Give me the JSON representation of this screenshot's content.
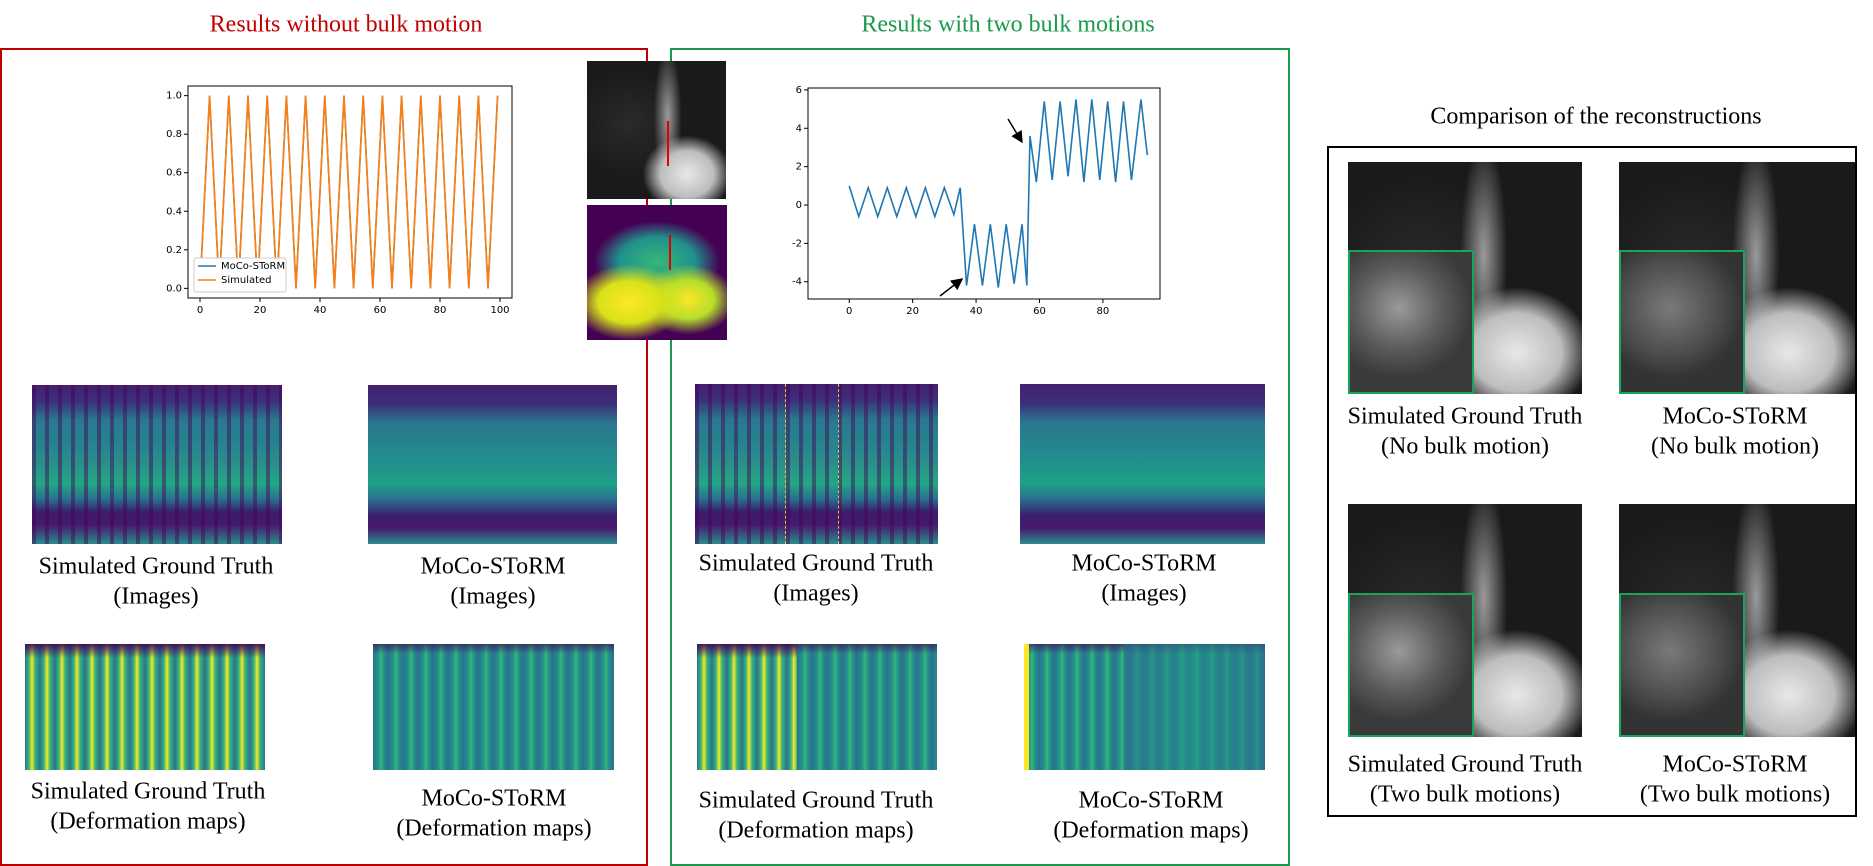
{
  "chart_data": [
    {
      "type": "line",
      "legend": "lower left",
      "xlim": [
        -4,
        104
      ],
      "ylim": [
        -0.05,
        1.05
      ],
      "xticks": [
        0,
        20,
        40,
        60,
        80,
        100
      ],
      "yticks": [
        {
          "value": 0,
          "label": "0.0"
        },
        {
          "value": 0.2,
          "label": "0.2"
        },
        {
          "value": 0.4,
          "label": "0.4"
        },
        {
          "value": 0.6,
          "label": "0.6"
        },
        {
          "value": 0.8,
          "label": "0.8"
        },
        {
          "value": 1,
          "label": "1.0"
        }
      ],
      "x": [
        0,
        3.2,
        6.4,
        9.6,
        12.8,
        16,
        19.2,
        22.4,
        25.6,
        28.8,
        32,
        35.2,
        38.4,
        41.6,
        44.8,
        48,
        51.2,
        54.4,
        57.6,
        60.8,
        64,
        67.2,
        70.4,
        73.6,
        76.8,
        80,
        83.2,
        86.4,
        89.6,
        92.8,
        96,
        99.2
      ],
      "series": [
        {
          "name": "MoCo-SToRM",
          "color": "#1f77b4",
          "values": [
            0,
            1,
            0,
            1,
            0,
            1,
            0,
            1,
            0,
            1,
            0,
            1,
            0,
            1,
            0,
            1,
            0,
            1,
            0,
            1,
            0,
            1,
            0,
            1,
            0,
            1,
            0,
            1,
            0,
            1,
            0,
            1
          ]
        },
        {
          "name": "Simulated",
          "color": "#ff7f0e",
          "values": [
            0,
            1,
            0,
            1,
            0,
            1,
            0,
            1,
            0,
            1,
            0,
            1,
            0,
            1,
            0,
            1,
            0,
            1,
            0,
            1,
            0,
            1,
            0,
            1,
            0,
            1,
            0,
            1,
            0,
            1,
            0,
            1
          ]
        }
      ]
    },
    {
      "type": "line",
      "xlim": [
        -13,
        98
      ],
      "ylim": [
        -4.9,
        6.1
      ],
      "xticks": [
        0,
        20,
        40,
        60,
        80
      ],
      "yticks": [
        -4,
        -2,
        0,
        2,
        4,
        6
      ],
      "x": [
        0,
        3,
        6,
        9,
        12,
        15,
        18,
        21,
        24,
        27,
        30,
        33,
        35,
        37,
        39.5,
        42,
        44.5,
        47,
        49.5,
        52,
        54.5,
        56,
        57,
        59,
        61.5,
        64,
        66.5,
        69,
        71.5,
        74,
        76.5,
        79,
        81.5,
        84,
        86.5,
        89,
        92,
        94
      ],
      "series": [
        {
          "color": "#1f77b4",
          "values": [
            1,
            -0.6,
            0.9,
            -0.6,
            0.9,
            -0.6,
            0.9,
            -0.6,
            0.9,
            -0.6,
            0.9,
            -0.5,
            0.9,
            -4.2,
            -1,
            -4.2,
            -1,
            -4.3,
            -1,
            -4.1,
            -1,
            -4.2,
            3.6,
            1.2,
            5.4,
            1.3,
            5.4,
            1.5,
            5.5,
            1.2,
            5.5,
            1.3,
            5.4,
            1.2,
            5.4,
            1.3,
            5.5,
            2.6
          ]
        }
      ]
    }
  ],
  "sections": [
    {
      "title": "Results without bulk motion",
      "captions": [
        [
          "Simulated Ground Truth",
          "(Images)"
        ],
        [
          "MoCo-SToRM",
          "(Images)"
        ],
        [
          "Simulated Ground Truth",
          "(Deformation maps)"
        ],
        [
          "MoCo-SToRM",
          "(Deformation maps)"
        ]
      ]
    },
    {
      "title": "Results with two bulk motions",
      "captions": [
        [
          "Simulated Ground Truth",
          "(Images)"
        ],
        [
          "MoCo-SToRM",
          "(Images)"
        ],
        [
          "Simulated Ground Truth",
          "(Deformation maps)"
        ],
        [
          "MoCo-SToRM",
          "(Deformation maps)"
        ]
      ]
    },
    {
      "title": "Comparison of the reconstructions",
      "captions": [
        [
          "Simulated Ground Truth",
          "(No bulk motion)"
        ],
        [
          "MoCo-SToRM",
          "(No bulk motion)"
        ],
        [
          "Simulated Ground Truth",
          "(Two bulk motions)"
        ],
        [
          "MoCo-SToRM",
          "(Two bulk motions)"
        ]
      ]
    }
  ]
}
